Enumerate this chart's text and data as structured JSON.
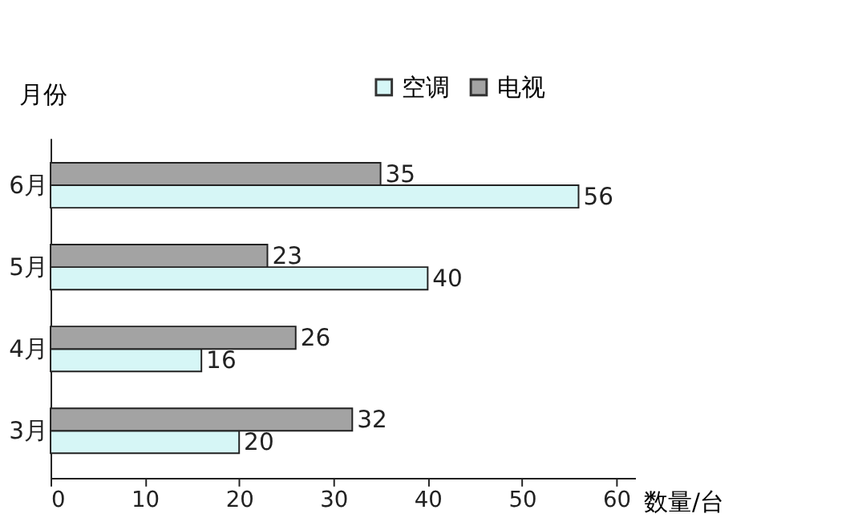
{
  "chart_data": {
    "type": "bar",
    "orientation": "horizontal",
    "categories": [
      "6月",
      "5月",
      "4月",
      "3月"
    ],
    "series": [
      {
        "name": "空调",
        "color": "#d6f6f6",
        "values": [
          56,
          40,
          16,
          20
        ]
      },
      {
        "name": "电视",
        "color": "#a3a3a3",
        "values": [
          35,
          23,
          26,
          32
        ]
      }
    ],
    "xlabel": "数量/台",
    "ylabel": "月份",
    "xlim": [
      0,
      62
    ],
    "xticks": [
      0,
      10,
      20,
      30,
      40,
      50,
      60
    ],
    "data_labels": true,
    "legend": "top right",
    "grid": false
  }
}
